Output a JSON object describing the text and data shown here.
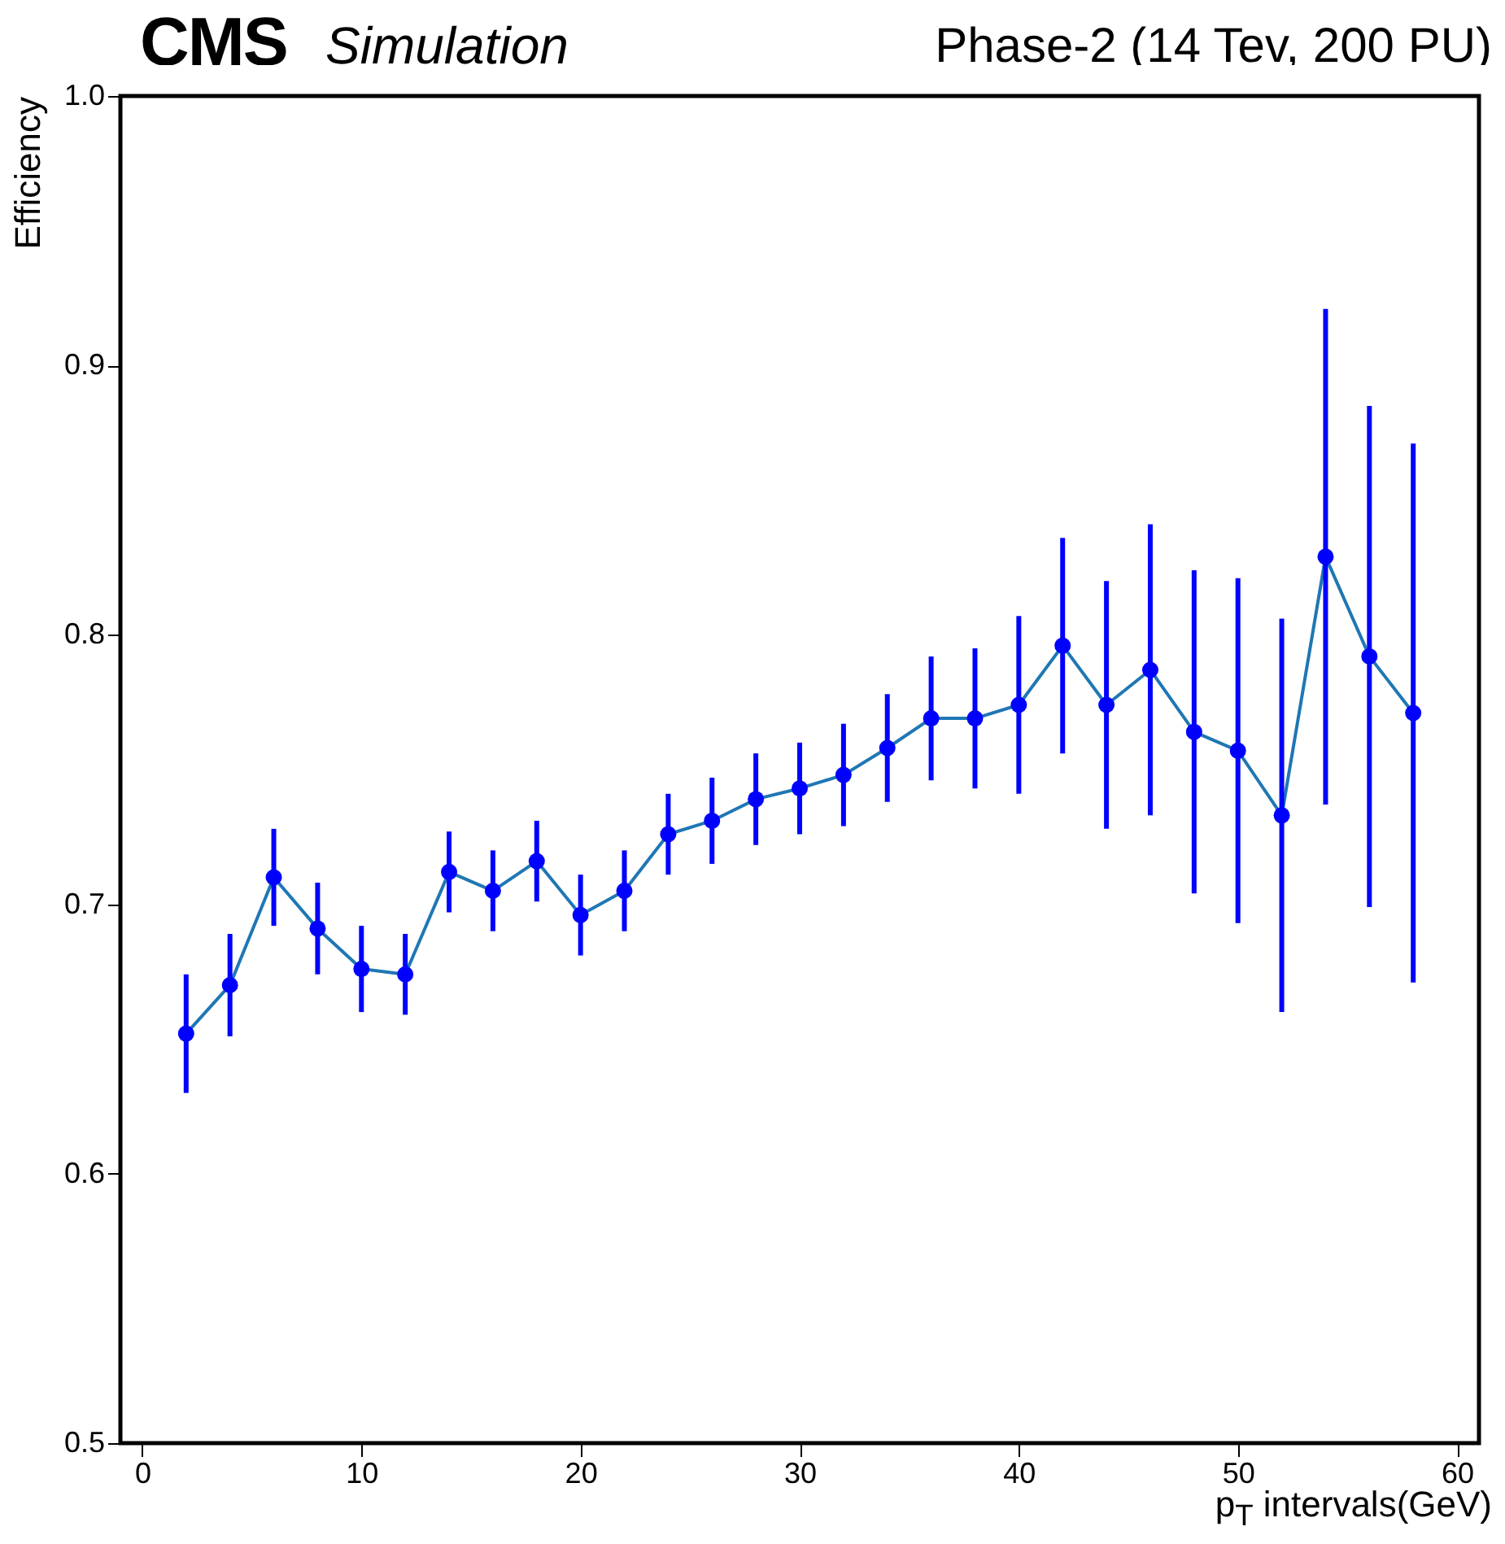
{
  "chart_data": {
    "type": "line",
    "title": "CMS",
    "subtitle": "Simulation",
    "annotations": [
      "Phase-2 (14 Tev, 200 PU)"
    ],
    "xlabel": "p$_{T}$ intervals(GeV)",
    "ylabel": "Efficiency",
    "x": [
      2,
      4,
      6,
      8,
      10,
      12,
      14,
      16,
      18,
      20,
      22,
      24,
      26,
      28,
      30,
      32,
      34,
      36,
      38,
      40,
      42,
      44,
      46,
      48,
      50,
      52,
      54,
      56,
      58
    ],
    "series": [
      {
        "color": "#1f77b4",
        "marker": "none",
        "values": [
          0.652,
          0.67,
          0.71,
          0.691,
          0.676,
          0.674,
          0.712,
          0.705,
          0.716,
          0.696,
          0.705,
          0.726,
          0.731,
          0.739,
          0.743,
          0.748,
          0.758,
          0.769,
          0.769,
          0.774,
          0.796,
          0.774,
          0.787,
          0.764,
          0.757,
          0.733,
          0.829,
          0.792,
          0.771
        ]
      },
      {
        "type": "scatter",
        "color": "#0000ff",
        "marker": "circle",
        "values": [
          0.652,
          0.67,
          0.71,
          0.691,
          0.676,
          0.674,
          0.712,
          0.705,
          0.716,
          0.696,
          0.705,
          0.726,
          0.731,
          0.739,
          0.743,
          0.748,
          0.758,
          0.769,
          0.769,
          0.774,
          0.796,
          0.774,
          0.787,
          0.764,
          0.757,
          0.733,
          0.829,
          0.792,
          0.771
        ],
        "errors": [
          0.022,
          0.019,
          0.018,
          0.017,
          0.016,
          0.015,
          0.015,
          0.015,
          0.015,
          0.015,
          0.015,
          0.015,
          0.016,
          0.017,
          0.017,
          0.019,
          0.02,
          0.023,
          0.026,
          0.033,
          0.04,
          0.046,
          0.054,
          0.06,
          0.064,
          0.073,
          0.092,
          0.093,
          0.1
        ]
      }
    ],
    "xlim": [
      -1,
      61
    ],
    "xticks": [
      0,
      10,
      20,
      30,
      40,
      50,
      60
    ],
    "ylim": [
      0.5,
      1.0
    ],
    "yticks": [
      0.5,
      0.6,
      0.7,
      0.8,
      0.9,
      {
        "value": 1.0,
        "label": "1.0"
      }
    ],
    "grid": false
  }
}
